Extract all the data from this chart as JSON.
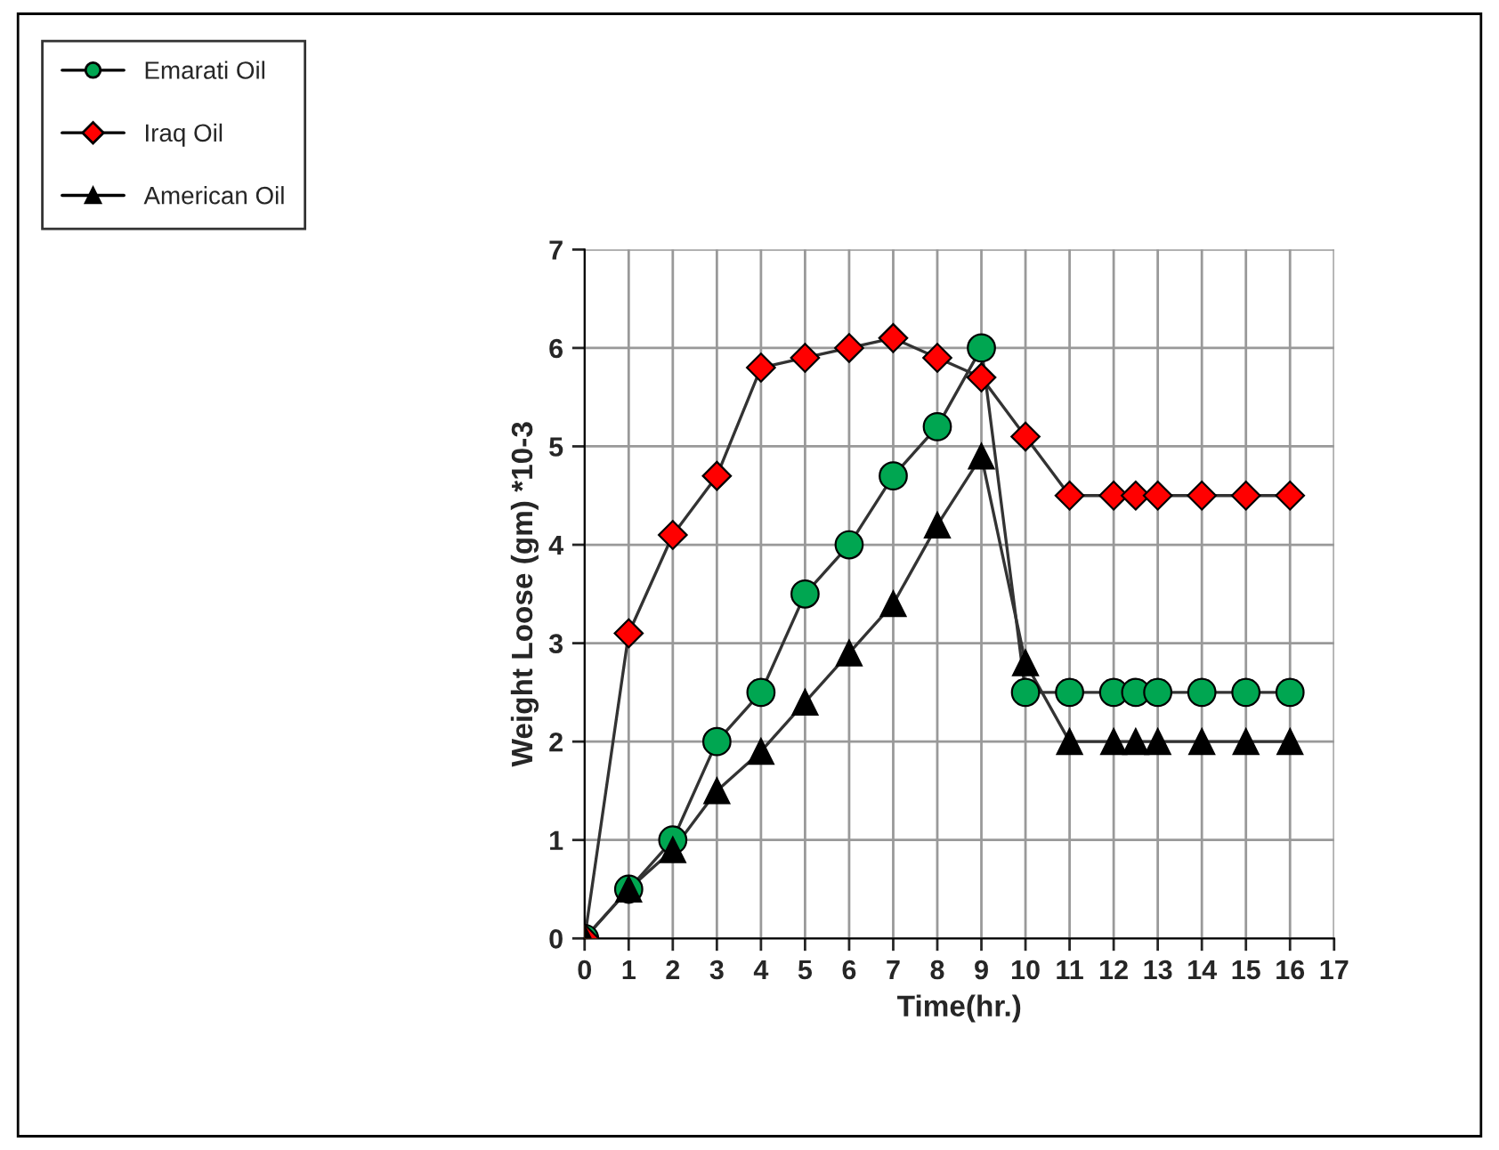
{
  "chart_data": {
    "type": "line",
    "xlabel": "Time(hr.)",
    "ylabel": "Weight Loose (gm) *10-3",
    "x": [
      0,
      1,
      2,
      3,
      4,
      5,
      6,
      7,
      8,
      9,
      10,
      11,
      12,
      12.5,
      13,
      14,
      15,
      16
    ],
    "series": [
      {
        "name": "Emarati Oil",
        "color": "#00a651",
        "marker": "circle",
        "values": [
          0,
          0.5,
          1,
          2,
          2.5,
          3.5,
          4,
          4.7,
          5.2,
          6,
          2.5,
          2.5,
          2.5,
          2.5,
          2.5,
          2.5,
          2.5,
          2.5
        ]
      },
      {
        "name": "Iraq Oil",
        "color": "#ff0000",
        "marker": "diamond",
        "values": [
          0,
          3.1,
          4.1,
          4.7,
          5.8,
          5.9,
          6.0,
          6.1,
          5.9,
          5.7,
          5.1,
          4.5,
          4.5,
          4.5,
          4.5,
          4.5,
          4.5,
          4.5
        ]
      },
      {
        "name": "American Oil",
        "color": "#000000",
        "marker": "triangle",
        "values": [
          0,
          0.5,
          0.9,
          1.5,
          1.9,
          2.4,
          2.9,
          3.4,
          4.2,
          4.9,
          2.8,
          2.0,
          2.0,
          2.0,
          2.0,
          2.0,
          2.0,
          2.0
        ]
      }
    ],
    "xlim": [
      0,
      17
    ],
    "xticks": [
      0,
      1,
      2,
      3,
      4,
      5,
      6,
      7,
      8,
      9,
      10,
      11,
      12,
      13,
      14,
      15,
      16,
      17
    ],
    "ylim": [
      0,
      7
    ],
    "yticks": [
      0,
      1,
      2,
      3,
      4,
      5,
      6,
      7
    ],
    "grid": true,
    "legend": "top left"
  }
}
